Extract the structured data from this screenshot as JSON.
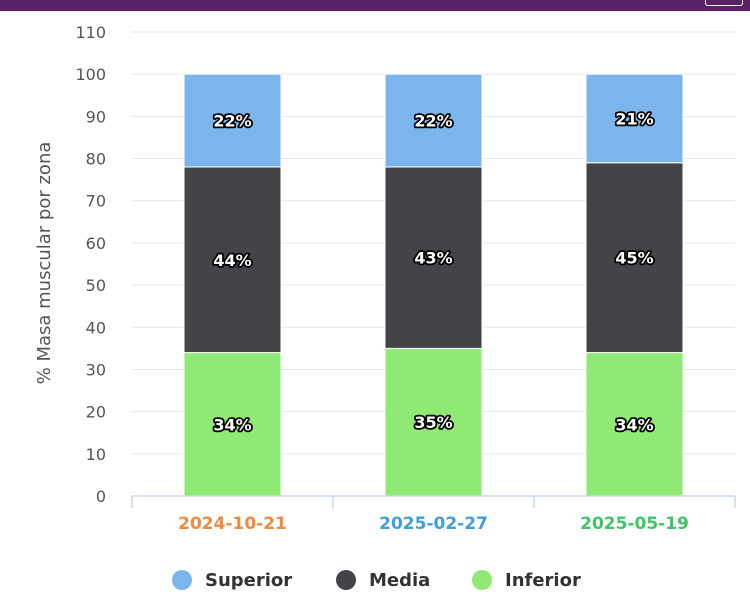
{
  "header": {
    "button_label": ""
  },
  "chart_data": {
    "type": "bar",
    "stacked": true,
    "title": "",
    "xlabel": "",
    "ylabel": "% Masa muscular por zona",
    "ylim": [
      0,
      110
    ],
    "yticks": [
      0,
      10,
      20,
      30,
      40,
      50,
      60,
      70,
      80,
      90,
      100,
      110
    ],
    "grid": true,
    "categories": [
      "2024-10-21",
      "2025-02-27",
      "2025-05-19"
    ],
    "category_colors": [
      "#f08a3c",
      "#3d9fd9",
      "#3fc46a"
    ],
    "series": [
      {
        "name": "Inferior",
        "color": "#8eea74",
        "values": [
          34,
          35,
          34
        ],
        "labels": [
          "34%",
          "35%",
          "34%"
        ]
      },
      {
        "name": "Media",
        "color": "#434348",
        "values": [
          44,
          43,
          45
        ],
        "labels": [
          "44%",
          "43%",
          "45%"
        ]
      },
      {
        "name": "Superior",
        "color": "#7cb5ec",
        "values": [
          22,
          22,
          21
        ],
        "labels": [
          "22%",
          "22%",
          "21%"
        ]
      }
    ],
    "legend": {
      "position": "bottom",
      "items": [
        {
          "name": "Superior",
          "color": "#7cb5ec"
        },
        {
          "name": "Media",
          "color": "#434348"
        },
        {
          "name": "Inferior",
          "color": "#8eea74"
        }
      ]
    }
  }
}
